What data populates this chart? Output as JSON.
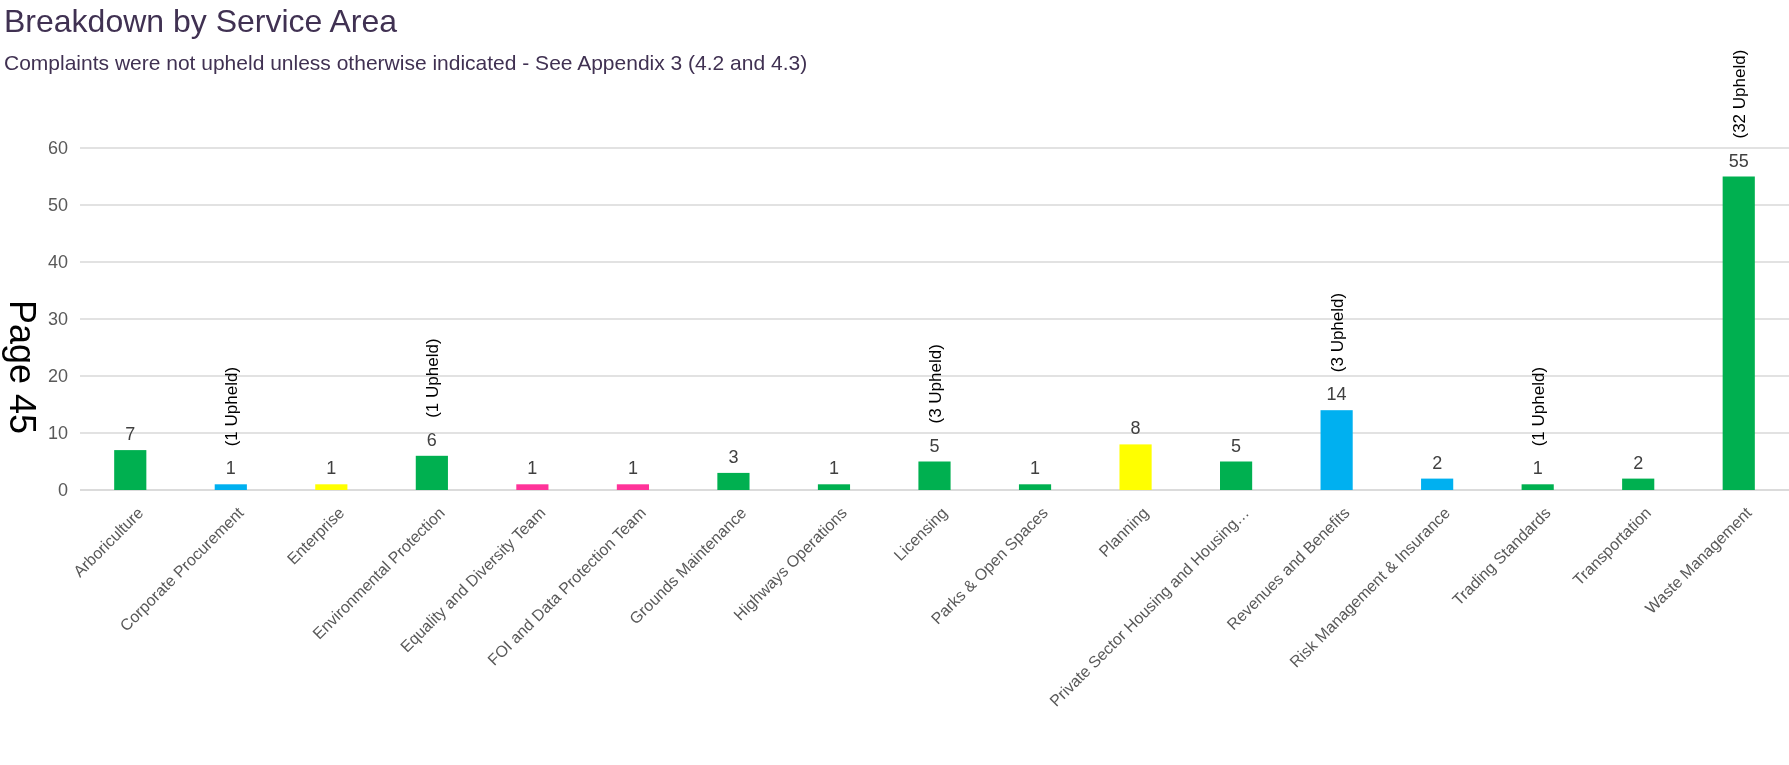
{
  "chart_data": {
    "type": "bar",
    "title": "Breakdown by Service Area",
    "subtitle": "Complaints were not upheld unless otherwise indicated - See Appendix 3 (4.2 and 4.3)",
    "categories": [
      "Arboriculture",
      "Corporate Procurement",
      "Enterprise",
      "Environmental Protection",
      "Equality and Diversity Team",
      "FOI and Data Protection Team",
      "Grounds Maintenance",
      "Highways Operations",
      "Licensing",
      "Parks & Open Spaces",
      "Planning",
      "Private Sector Housing and Housing…",
      "Revenues and Benefits",
      "Risk Management & Insurance",
      "Trading Standards",
      "Transportation",
      "Waste Management"
    ],
    "values": [
      7,
      1,
      1,
      6,
      1,
      1,
      3,
      1,
      5,
      1,
      8,
      5,
      14,
      2,
      1,
      2,
      55
    ],
    "colors": [
      "#00b050",
      "#00b0f0",
      "#ffff00",
      "#00b050",
      "#ff3399",
      "#ff3399",
      "#00b050",
      "#00b050",
      "#00b050",
      "#00b050",
      "#ffff00",
      "#00b050",
      "#00b0f0",
      "#00b0f0",
      "#00b050",
      "#00b050",
      "#00b050"
    ],
    "ylim": [
      0,
      60
    ],
    "yticks": [
      0,
      10,
      20,
      30,
      40,
      50,
      60
    ],
    "grid": "y",
    "data_labels": true,
    "annotations": [
      {
        "text": "(1 Upheld)",
        "x": "Corporate Procurement",
        "y": 1
      },
      {
        "text": "(1 Upheld)",
        "x": "Environmental Protection",
        "y": 6
      },
      {
        "text": "(3 Upheld)",
        "x": "Licensing",
        "y": 5
      },
      {
        "text": "(3 Upheld)",
        "x": "Revenues and Benefits",
        "y": 14
      },
      {
        "text": "(1 Upheld)",
        "x": "Trading Standards",
        "y": 1
      },
      {
        "text": "(32 Upheld)",
        "x": "Waste Management",
        "y": 55
      },
      "Page 45"
    ]
  }
}
